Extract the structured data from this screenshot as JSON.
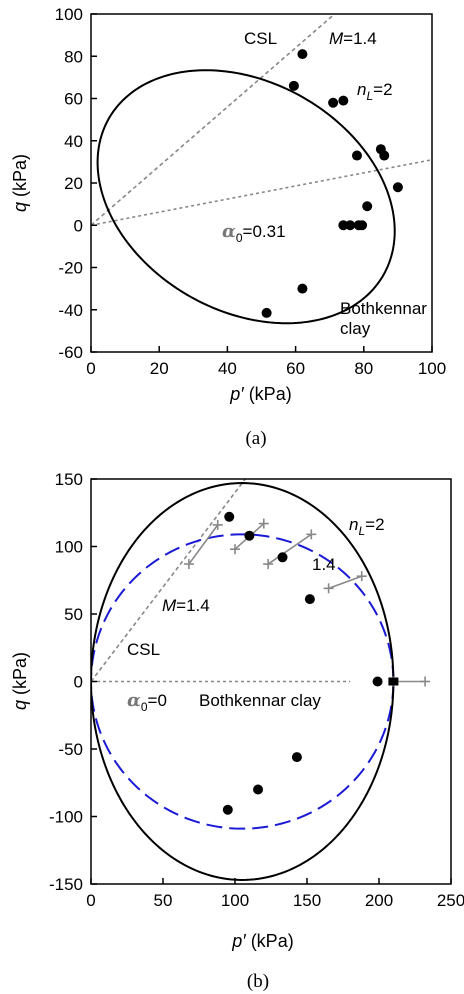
{
  "chart_data": [
    {
      "type": "scatter",
      "panel_label": "(a)",
      "xlabel_sym": "p′",
      "xlabel_unit": "(kPa)",
      "ylabel_sym": "q",
      "ylabel_unit": "(kPa)",
      "xlim": [
        0,
        100
      ],
      "ylim": [
        -60,
        100
      ],
      "x_ticks": [
        0,
        20,
        40,
        60,
        80,
        100
      ],
      "y_ticks": [
        -60,
        -40,
        -20,
        0,
        20,
        40,
        60,
        80,
        100
      ],
      "x_tick_labels": [
        "0",
        "20",
        "40",
        "60",
        "80",
        "100"
      ],
      "y_tick_labels": [
        "-60",
        "-40",
        "-20",
        "0",
        "20",
        "40",
        "60",
        "80",
        "100"
      ],
      "grid": false,
      "points": [
        {
          "x": 62,
          "y": 81
        },
        {
          "x": 59.5,
          "y": 66
        },
        {
          "x": 71,
          "y": 58
        },
        {
          "x": 74,
          "y": 59
        },
        {
          "x": 78,
          "y": 33
        },
        {
          "x": 85,
          "y": 36
        },
        {
          "x": 86,
          "y": 33
        },
        {
          "x": 90,
          "y": 18
        },
        {
          "x": 81,
          "y": 9
        },
        {
          "x": 74,
          "y": 0
        },
        {
          "x": 76,
          "y": 0
        },
        {
          "x": 78.5,
          "y": 0
        },
        {
          "x": 79.5,
          "y": 0
        },
        {
          "x": 62,
          "y": -30
        },
        {
          "x": 51.5,
          "y": -41.5
        }
      ],
      "yield_surface": {
        "center_p": 45.5,
        "center_q": 13.5,
        "semi_p": 40.5,
        "semi_q": 62,
        "rotation_deg": 20
      },
      "csl_slope": 1.4,
      "alpha_slope": 0.31,
      "annotations": {
        "csl": "CSL",
        "m_sym": "M",
        "m_val": "=1.4",
        "n_sym": "n",
        "n_sub": "L",
        "n_val": "=2",
        "alpha_sym": "α",
        "alpha_sub": "0",
        "alpha_val": "=0.31",
        "material_1": "Bothkennar",
        "material_2": "clay"
      }
    },
    {
      "type": "scatter",
      "panel_label": "(b)",
      "xlabel_sym": "p′",
      "xlabel_unit": "(kPa)",
      "ylabel_sym": "q",
      "ylabel_unit": "(kPa)",
      "xlim": [
        0,
        250
      ],
      "ylim": [
        -150,
        150
      ],
      "x_ticks": [
        0,
        50,
        100,
        150,
        200,
        250
      ],
      "y_ticks": [
        -150,
        -100,
        -50,
        0,
        50,
        100,
        150
      ],
      "x_tick_labels": [
        "0",
        "50",
        "100",
        "150",
        "200",
        "250"
      ],
      "y_tick_labels": [
        "-150",
        "-100",
        "-50",
        "0",
        "50",
        "100",
        "150"
      ],
      "grid": false,
      "points": [
        {
          "x": 96,
          "y": 122
        },
        {
          "x": 110,
          "y": 108
        },
        {
          "x": 133,
          "y": 92
        },
        {
          "x": 152,
          "y": 61
        },
        {
          "x": 199,
          "y": 0
        },
        {
          "x": 143,
          "y": -56
        },
        {
          "x": 116,
          "y": -80
        },
        {
          "x": 95,
          "y": -95
        }
      ],
      "yield_surface_nL2": {
        "center_p": 105,
        "center_q": 0,
        "semi_p": 105,
        "semi_q": 147
      },
      "yield_surface_M14": {
        "center_p": 105,
        "center_q": 0,
        "semi_p": 105,
        "semi_q": 109
      },
      "error_segments": [
        {
          "x1": 68,
          "y1": 87,
          "x2": 88,
          "y2": 116
        },
        {
          "x1": 100,
          "y1": 98,
          "x2": 120,
          "y2": 117
        },
        {
          "x1": 123,
          "y1": 87,
          "x2": 153,
          "y2": 109
        },
        {
          "x1": 165,
          "y1": 69,
          "x2": 188,
          "y2": 78
        },
        {
          "x1": 210,
          "y1": 0,
          "x2": 232,
          "y2": 0
        }
      ],
      "csl_slope": 1.4,
      "alpha_line_p_max": 180,
      "annotations": {
        "n_sym": "n",
        "n_sub": "L",
        "n_val": "=2",
        "m_label": "1.4",
        "m_sym": "M",
        "m_val": "=1.4",
        "csl": "CSL",
        "alpha_sym": "α",
        "alpha_sub": "0",
        "alpha_val": "=0",
        "material": "Bothkennar clay"
      }
    }
  ]
}
